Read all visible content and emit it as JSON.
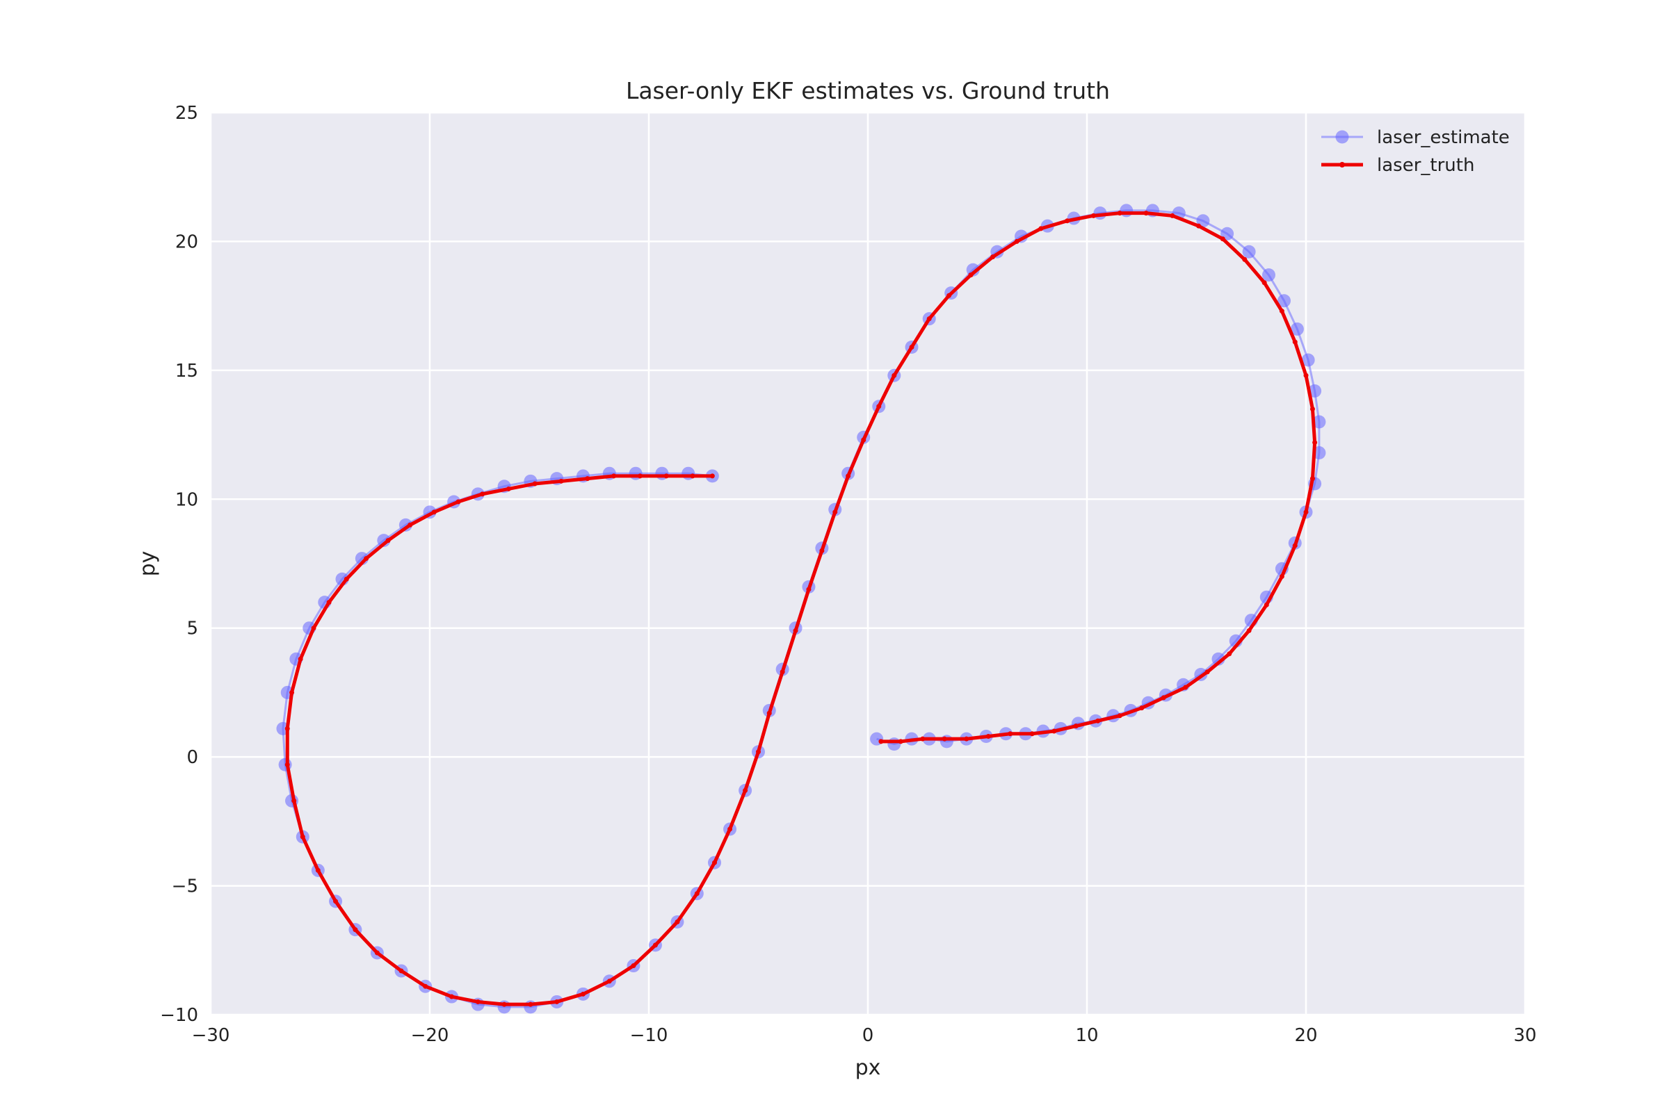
{
  "chart_data": {
    "type": "line",
    "title": "Laser-only EKF estimates vs. Ground truth",
    "xlabel": "px",
    "ylabel": "py",
    "xlim": [
      -30,
      30
    ],
    "ylim": [
      -10,
      25
    ],
    "xticks": [
      -30,
      -20,
      -10,
      0,
      10,
      20,
      30
    ],
    "yticks": [
      -10,
      -5,
      0,
      5,
      10,
      15,
      20,
      25
    ],
    "xtick_labels": [
      "−30",
      "−20",
      "−10",
      "0",
      "10",
      "20",
      "30"
    ],
    "ytick_labels": [
      "−10",
      "−5",
      "0",
      "5",
      "10",
      "15",
      "20",
      "25"
    ],
    "grid": true,
    "background": "#eaeaf2",
    "legend_placement": "top-right",
    "series": [
      {
        "name": "laser_estimate",
        "color": "#6464ff",
        "marker": "circle",
        "points": [
          [
            0.4,
            0.7
          ],
          [
            1.2,
            0.5
          ],
          [
            2.0,
            0.7
          ],
          [
            2.8,
            0.7
          ],
          [
            3.6,
            0.6
          ],
          [
            4.5,
            0.7
          ],
          [
            5.4,
            0.8
          ],
          [
            6.3,
            0.9
          ],
          [
            7.2,
            0.9
          ],
          [
            8.0,
            1.0
          ],
          [
            8.8,
            1.1
          ],
          [
            9.6,
            1.3
          ],
          [
            10.4,
            1.4
          ],
          [
            11.2,
            1.6
          ],
          [
            12.0,
            1.8
          ],
          [
            12.8,
            2.1
          ],
          [
            13.6,
            2.4
          ],
          [
            14.4,
            2.8
          ],
          [
            15.2,
            3.2
          ],
          [
            16.0,
            3.8
          ],
          [
            16.8,
            4.5
          ],
          [
            17.5,
            5.3
          ],
          [
            18.2,
            6.2
          ],
          [
            18.9,
            7.3
          ],
          [
            19.5,
            8.3
          ],
          [
            20.0,
            9.5
          ],
          [
            20.4,
            10.6
          ],
          [
            20.6,
            11.8
          ],
          [
            20.6,
            13.0
          ],
          [
            20.4,
            14.2
          ],
          [
            20.1,
            15.4
          ],
          [
            19.6,
            16.6
          ],
          [
            19.0,
            17.7
          ],
          [
            18.3,
            18.7
          ],
          [
            17.4,
            19.6
          ],
          [
            16.4,
            20.3
          ],
          [
            15.3,
            20.8
          ],
          [
            14.2,
            21.1
          ],
          [
            13.0,
            21.2
          ],
          [
            11.8,
            21.2
          ],
          [
            10.6,
            21.1
          ],
          [
            9.4,
            20.9
          ],
          [
            8.2,
            20.6
          ],
          [
            7.0,
            20.2
          ],
          [
            5.9,
            19.6
          ],
          [
            4.8,
            18.9
          ],
          [
            3.8,
            18.0
          ],
          [
            2.8,
            17.0
          ],
          [
            2.0,
            15.9
          ],
          [
            1.2,
            14.8
          ],
          [
            0.5,
            13.6
          ],
          [
            -0.2,
            12.4
          ],
          [
            -0.9,
            11.0
          ],
          [
            -1.5,
            9.6
          ],
          [
            -2.1,
            8.1
          ],
          [
            -2.7,
            6.6
          ],
          [
            -3.3,
            5.0
          ],
          [
            -3.9,
            3.4
          ],
          [
            -4.5,
            1.8
          ],
          [
            -5.0,
            0.2
          ],
          [
            -5.6,
            -1.3
          ],
          [
            -6.3,
            -2.8
          ],
          [
            -7.0,
            -4.1
          ],
          [
            -7.8,
            -5.3
          ],
          [
            -8.7,
            -6.4
          ],
          [
            -9.7,
            -7.3
          ],
          [
            -10.7,
            -8.1
          ],
          [
            -11.8,
            -8.7
          ],
          [
            -13.0,
            -9.2
          ],
          [
            -14.2,
            -9.5
          ],
          [
            -15.4,
            -9.7
          ],
          [
            -16.6,
            -9.7
          ],
          [
            -17.8,
            -9.6
          ],
          [
            -19.0,
            -9.3
          ],
          [
            -20.2,
            -8.9
          ],
          [
            -21.3,
            -8.3
          ],
          [
            -22.4,
            -7.6
          ],
          [
            -23.4,
            -6.7
          ],
          [
            -24.3,
            -5.6
          ],
          [
            -25.1,
            -4.4
          ],
          [
            -25.8,
            -3.1
          ],
          [
            -26.3,
            -1.7
          ],
          [
            -26.6,
            -0.3
          ],
          [
            -26.7,
            1.1
          ],
          [
            -26.5,
            2.5
          ],
          [
            -26.1,
            3.8
          ],
          [
            -25.5,
            5.0
          ],
          [
            -24.8,
            6.0
          ],
          [
            -24.0,
            6.9
          ],
          [
            -23.1,
            7.7
          ],
          [
            -22.1,
            8.4
          ],
          [
            -21.1,
            9.0
          ],
          [
            -20.0,
            9.5
          ],
          [
            -18.9,
            9.9
          ],
          [
            -17.8,
            10.2
          ],
          [
            -16.6,
            10.5
          ],
          [
            -15.4,
            10.7
          ],
          [
            -14.2,
            10.8
          ],
          [
            -13.0,
            10.9
          ],
          [
            -11.8,
            11.0
          ],
          [
            -10.6,
            11.0
          ],
          [
            -9.4,
            11.0
          ],
          [
            -8.2,
            11.0
          ],
          [
            -7.1,
            10.9
          ]
        ]
      },
      {
        "name": "laser_truth",
        "color": "#ee0000",
        "marker": "line",
        "points": [
          [
            0.6,
            0.6
          ],
          [
            1.5,
            0.6
          ],
          [
            2.5,
            0.7
          ],
          [
            3.5,
            0.7
          ],
          [
            4.5,
            0.7
          ],
          [
            5.5,
            0.8
          ],
          [
            6.5,
            0.9
          ],
          [
            7.5,
            0.9
          ],
          [
            8.5,
            1.0
          ],
          [
            9.5,
            1.2
          ],
          [
            10.5,
            1.4
          ],
          [
            11.5,
            1.6
          ],
          [
            12.5,
            1.9
          ],
          [
            13.5,
            2.3
          ],
          [
            14.5,
            2.7
          ],
          [
            15.5,
            3.3
          ],
          [
            16.5,
            4.0
          ],
          [
            17.4,
            4.9
          ],
          [
            18.2,
            5.9
          ],
          [
            18.9,
            7.0
          ],
          [
            19.5,
            8.2
          ],
          [
            20.0,
            9.5
          ],
          [
            20.3,
            10.8
          ],
          [
            20.4,
            12.2
          ],
          [
            20.3,
            13.5
          ],
          [
            20.0,
            14.8
          ],
          [
            19.5,
            16.1
          ],
          [
            18.9,
            17.3
          ],
          [
            18.1,
            18.4
          ],
          [
            17.2,
            19.3
          ],
          [
            16.2,
            20.1
          ],
          [
            15.1,
            20.6
          ],
          [
            13.9,
            21.0
          ],
          [
            12.7,
            21.1
          ],
          [
            11.5,
            21.1
          ],
          [
            10.3,
            21.0
          ],
          [
            9.1,
            20.8
          ],
          [
            7.9,
            20.5
          ],
          [
            6.8,
            20.0
          ],
          [
            5.7,
            19.4
          ],
          [
            4.7,
            18.7
          ],
          [
            3.7,
            17.9
          ],
          [
            2.8,
            17.0
          ],
          [
            2.0,
            15.9
          ],
          [
            1.2,
            14.8
          ],
          [
            0.5,
            13.6
          ],
          [
            -0.2,
            12.3
          ],
          [
            -0.9,
            10.9
          ],
          [
            -1.5,
            9.5
          ],
          [
            -2.1,
            8.0
          ],
          [
            -2.7,
            6.5
          ],
          [
            -3.3,
            4.9
          ],
          [
            -3.9,
            3.3
          ],
          [
            -4.5,
            1.7
          ],
          [
            -5.0,
            0.2
          ],
          [
            -5.6,
            -1.3
          ],
          [
            -6.3,
            -2.8
          ],
          [
            -7.0,
            -4.1
          ],
          [
            -7.8,
            -5.3
          ],
          [
            -8.7,
            -6.4
          ],
          [
            -9.7,
            -7.3
          ],
          [
            -10.7,
            -8.1
          ],
          [
            -11.8,
            -8.7
          ],
          [
            -13.0,
            -9.2
          ],
          [
            -14.2,
            -9.5
          ],
          [
            -15.4,
            -9.6
          ],
          [
            -16.6,
            -9.6
          ],
          [
            -17.8,
            -9.5
          ],
          [
            -19.0,
            -9.3
          ],
          [
            -20.2,
            -8.9
          ],
          [
            -21.3,
            -8.3
          ],
          [
            -22.4,
            -7.6
          ],
          [
            -23.4,
            -6.7
          ],
          [
            -24.3,
            -5.6
          ],
          [
            -25.1,
            -4.4
          ],
          [
            -25.8,
            -3.1
          ],
          [
            -26.2,
            -1.7
          ],
          [
            -26.5,
            -0.3
          ],
          [
            -26.5,
            1.1
          ],
          [
            -26.3,
            2.5
          ],
          [
            -25.9,
            3.8
          ],
          [
            -25.3,
            5.0
          ],
          [
            -24.6,
            6.0
          ],
          [
            -23.8,
            6.9
          ],
          [
            -22.9,
            7.7
          ],
          [
            -21.9,
            8.4
          ],
          [
            -20.9,
            9.0
          ],
          [
            -19.8,
            9.5
          ],
          [
            -18.7,
            9.9
          ],
          [
            -17.6,
            10.2
          ],
          [
            -16.4,
            10.4
          ],
          [
            -15.2,
            10.6
          ],
          [
            -14.0,
            10.7
          ],
          [
            -12.8,
            10.8
          ],
          [
            -11.6,
            10.9
          ],
          [
            -10.4,
            10.9
          ],
          [
            -9.2,
            10.9
          ],
          [
            -8.0,
            10.9
          ],
          [
            -7.1,
            10.9
          ]
        ]
      }
    ]
  }
}
